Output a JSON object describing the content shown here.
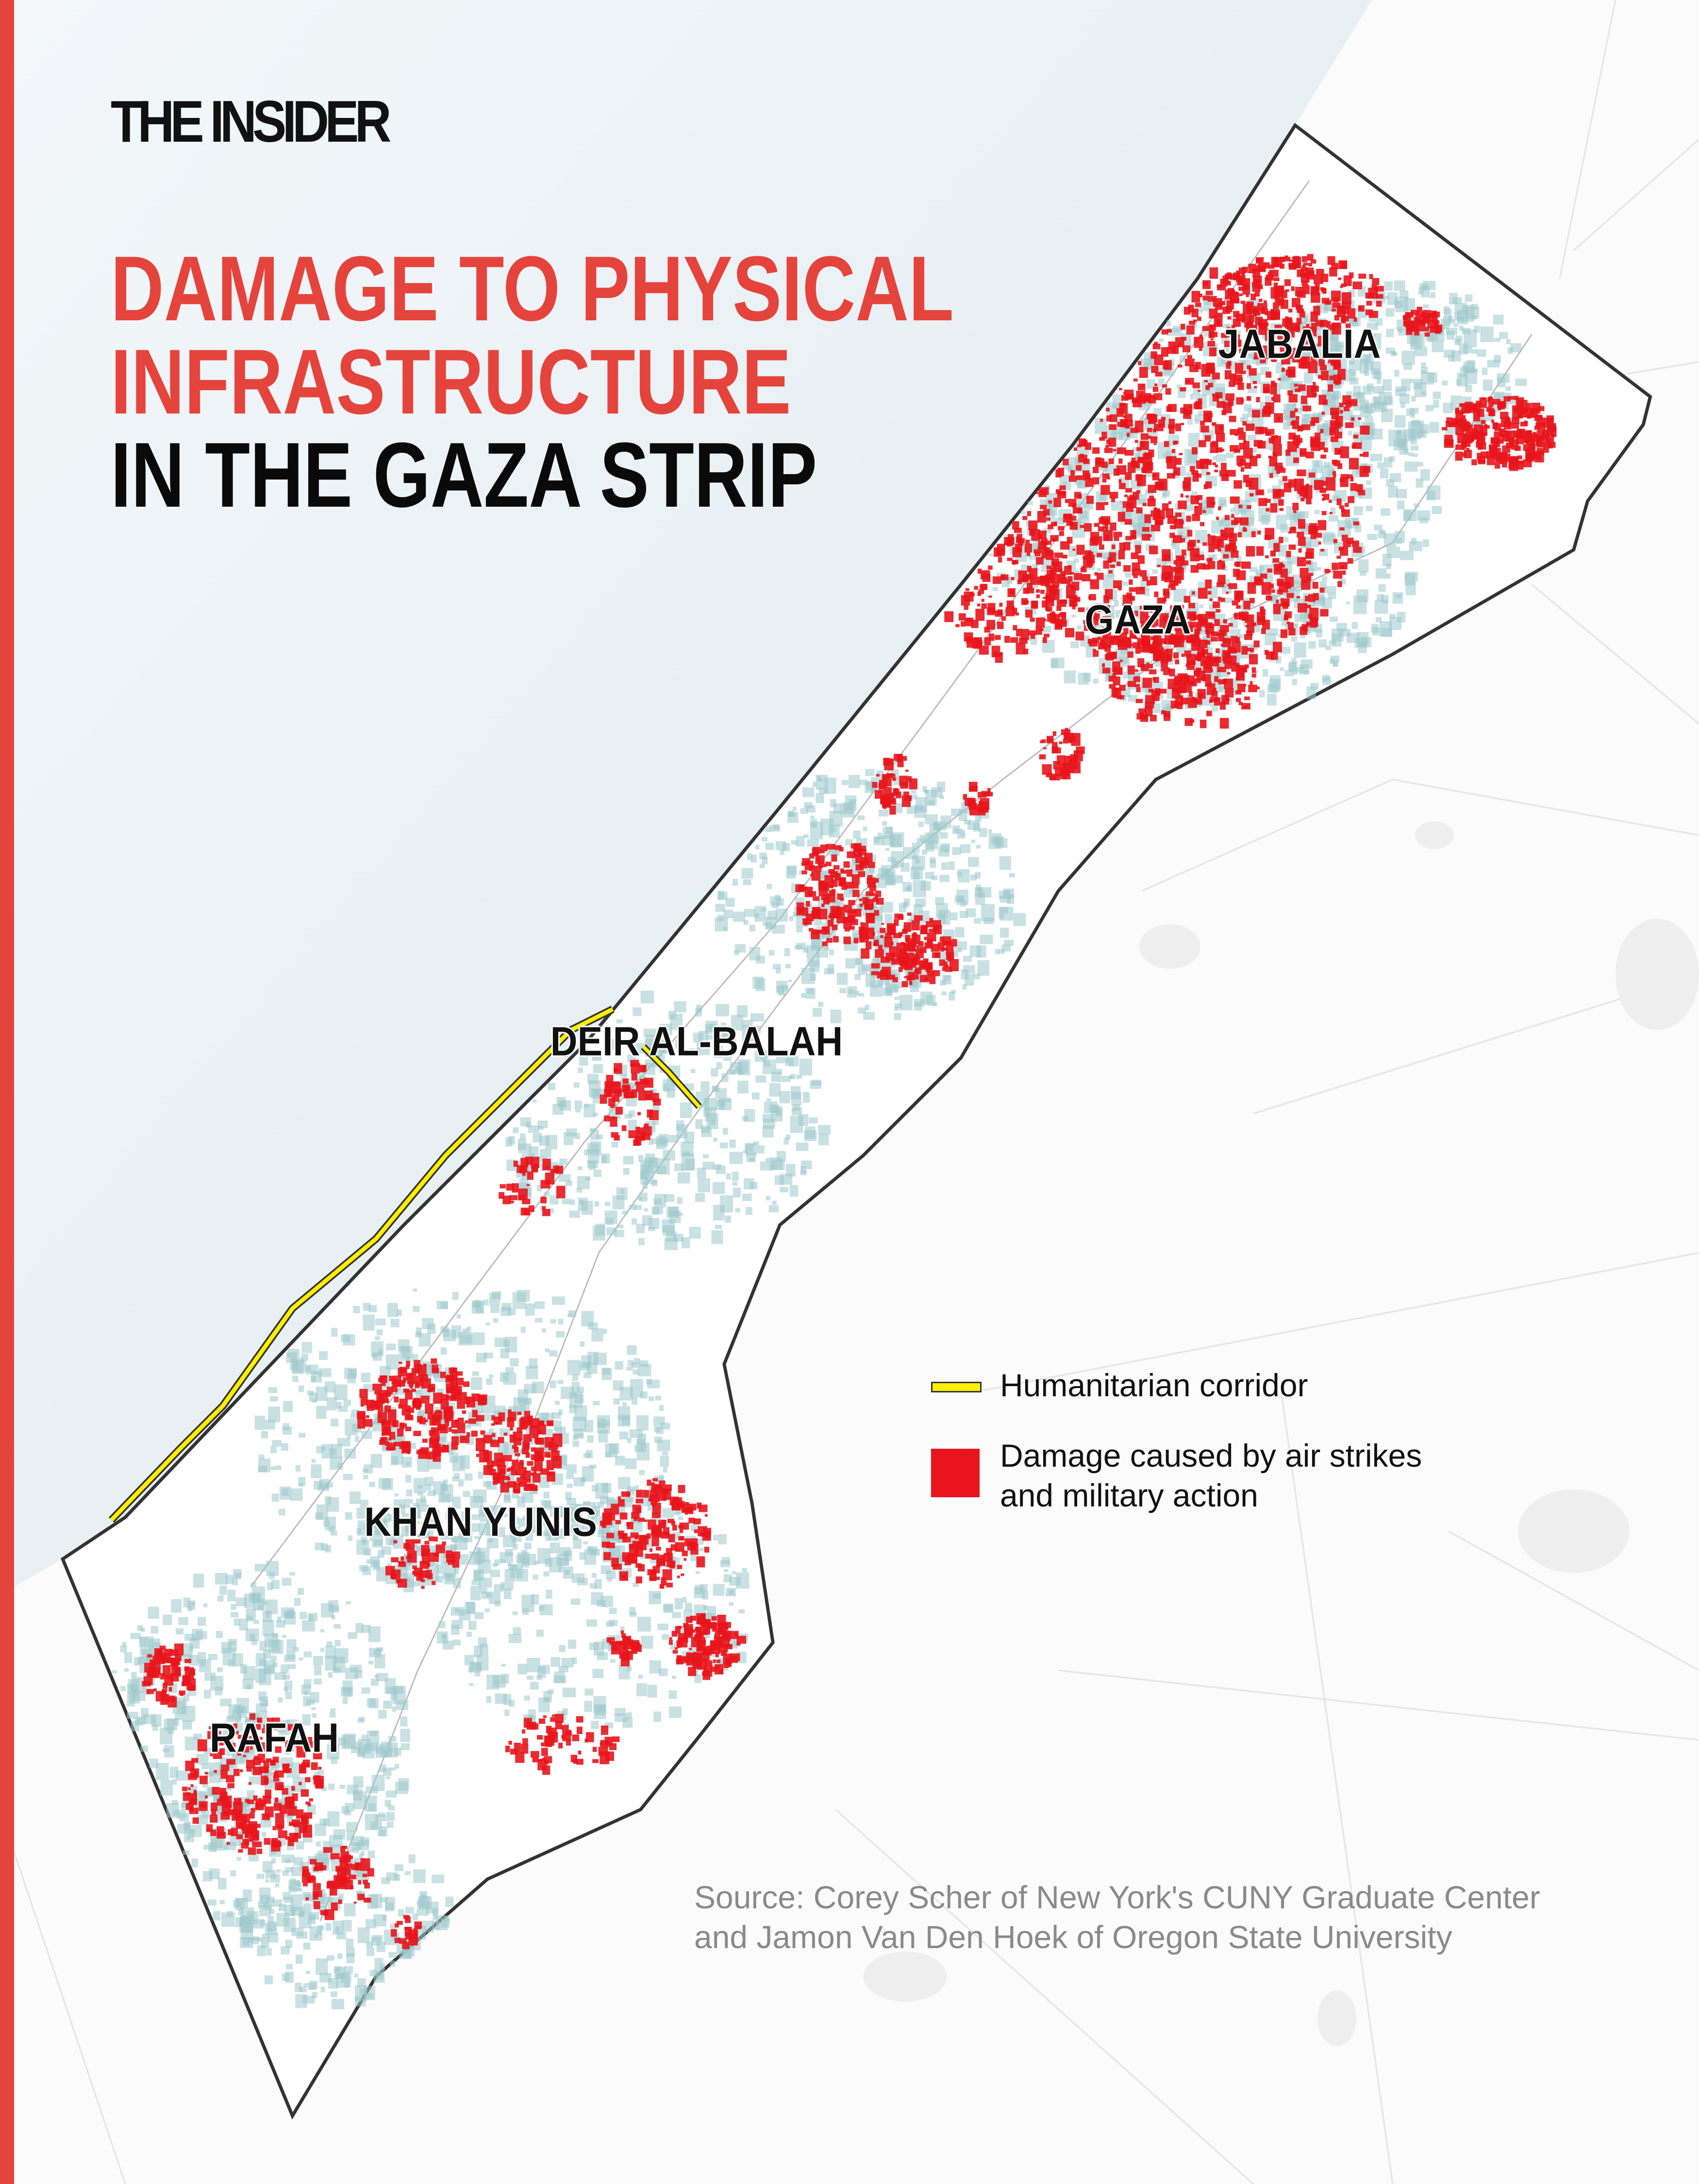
{
  "brand": {
    "logo_text": "THE INSIDER"
  },
  "title": {
    "line1": "DAMAGE TO PHYSICAL",
    "line2": "INFRASTRUCTURE",
    "line3": "IN THE GAZA STRIP"
  },
  "cities": {
    "jabalia": "JABALIA",
    "gaza": "GAZA",
    "deir_al_balah": "DEIR AL-BALAH",
    "khan_yunis": "KHAN YUNIS",
    "rafah": "RAFAH"
  },
  "legend": {
    "corridor": "Humanitarian corridor",
    "damage_line1": "Damage caused by air strikes",
    "damage_line2": "and military action"
  },
  "source": {
    "line1": "Source: Corey Scher of New York's CUNY Graduate Center",
    "line2": "and Jamon Van Den Hoek of Oregon State University"
  },
  "colors": {
    "accent": "#e5443d",
    "damage": "#e8151c",
    "corridor": "#ffee00",
    "sea": "#e9f1f5",
    "buildings": "#9cc9cc"
  }
}
